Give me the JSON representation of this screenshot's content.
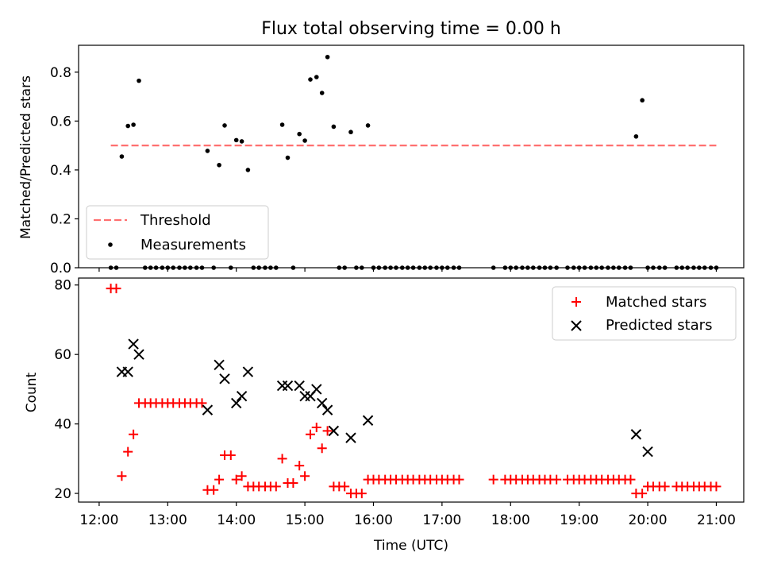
{
  "chart_data": [
    {
      "type": "scatter",
      "title": "Flux total observing time = 0.00 h",
      "xlabel": "",
      "ylabel": "Matched/Predicted stars",
      "xlim": [
        11.7,
        21.4
      ],
      "ylim": [
        0.0,
        0.91
      ],
      "y_ticks": [
        0.0,
        0.2,
        0.4,
        0.6,
        0.8
      ],
      "y_tick_labels": [
        "0.0",
        "0.2",
        "0.4",
        "0.6",
        "0.8"
      ],
      "x_ticks": [
        12,
        13,
        14,
        15,
        16,
        17,
        18,
        19,
        20,
        21
      ],
      "legend": {
        "position": "lower-left",
        "entries": [
          "Threshold",
          "Measurements"
        ]
      },
      "threshold": {
        "name": "Threshold",
        "value": 0.5,
        "x_start": 12.17,
        "x_end": 21.0,
        "color": "#ff7070"
      },
      "series": [
        {
          "name": "Measurements",
          "color": "#000000",
          "x": [
            12.17,
            12.25,
            12.33,
            12.42,
            12.5,
            12.58,
            12.67,
            12.75,
            12.83,
            12.92,
            13.0,
            13.08,
            13.17,
            13.25,
            13.33,
            13.42,
            13.5,
            13.58,
            13.67,
            13.75,
            13.83,
            13.92,
            14.0,
            14.08,
            14.17,
            14.25,
            14.33,
            14.42,
            14.5,
            14.58,
            14.67,
            14.75,
            14.83,
            14.92,
            15.0,
            15.08,
            15.17,
            15.25,
            15.33,
            15.42,
            15.5,
            15.58,
            15.67,
            15.75,
            15.83,
            15.92,
            16.0,
            16.08,
            16.17,
            16.25,
            16.33,
            16.42,
            16.5,
            16.58,
            16.67,
            16.75,
            16.83,
            16.92,
            17.0,
            17.08,
            17.17,
            17.25,
            17.75,
            17.92,
            18.0,
            18.08,
            18.17,
            18.25,
            18.33,
            18.42,
            18.5,
            18.58,
            18.67,
            18.83,
            18.92,
            19.0,
            19.08,
            19.17,
            19.25,
            19.33,
            19.42,
            19.5,
            19.58,
            19.67,
            19.75,
            19.83,
            19.92,
            20.0,
            20.08,
            20.17,
            20.25,
            20.42,
            20.5,
            20.58,
            20.67,
            20.75,
            20.83,
            20.92,
            21.0
          ],
          "y": [
            0,
            0,
            0.455,
            0.58,
            0.585,
            0.765,
            0,
            0,
            0,
            0,
            0,
            0,
            0,
            0,
            0,
            0,
            0,
            0.478,
            0,
            0.42,
            0.582,
            0,
            0.522,
            0.517,
            0.4,
            0,
            0,
            0,
            0,
            0,
            0.585,
            0.45,
            0,
            0.547,
            0.52,
            0.77,
            0.78,
            0.715,
            0.862,
            0.577,
            0,
            0,
            0.555,
            0,
            0,
            0.582,
            0,
            0,
            0,
            0,
            0,
            0,
            0,
            0,
            0,
            0,
            0,
            0,
            0,
            0,
            0,
            0,
            0,
            0,
            0,
            0,
            0,
            0,
            0,
            0,
            0,
            0,
            0,
            0,
            0,
            0,
            0,
            0,
            0,
            0,
            0,
            0,
            0,
            0,
            0,
            0.537,
            0.685,
            0,
            0,
            0,
            0,
            0,
            0,
            0,
            0,
            0,
            0,
            0,
            0
          ]
        }
      ]
    },
    {
      "type": "scatter",
      "title": "",
      "xlabel": "Time (UTC)",
      "ylabel": "Count",
      "xlim": [
        11.7,
        21.4
      ],
      "ylim": [
        17.5,
        82.0
      ],
      "y_ticks": [
        20,
        40,
        60,
        80
      ],
      "y_tick_labels": [
        "20",
        "40",
        "60",
        "80"
      ],
      "x_ticks": [
        12,
        13,
        14,
        15,
        16,
        17,
        18,
        19,
        20,
        21
      ],
      "x_tick_labels": [
        "12:00",
        "13:00",
        "14:00",
        "15:00",
        "16:00",
        "17:00",
        "18:00",
        "19:00",
        "20:00",
        "21:00"
      ],
      "legend": {
        "position": "top-right",
        "entries": [
          "Matched stars",
          "Predicted stars"
        ]
      },
      "series": [
        {
          "name": "Matched stars",
          "marker": "plus",
          "color": "#ff0000",
          "x": [
            12.17,
            12.25,
            12.33,
            12.42,
            12.5,
            12.58,
            12.67,
            12.75,
            12.83,
            12.92,
            13.0,
            13.08,
            13.17,
            13.25,
            13.33,
            13.42,
            13.5,
            13.58,
            13.67,
            13.75,
            13.83,
            13.92,
            14.0,
            14.08,
            14.17,
            14.25,
            14.33,
            14.42,
            14.5,
            14.58,
            14.67,
            14.75,
            14.83,
            14.92,
            15.0,
            15.08,
            15.17,
            15.25,
            15.33,
            15.42,
            15.5,
            15.58,
            15.67,
            15.75,
            15.83,
            15.92,
            16.0,
            16.08,
            16.17,
            16.25,
            16.33,
            16.42,
            16.5,
            16.58,
            16.67,
            16.75,
            16.83,
            16.92,
            17.0,
            17.08,
            17.17,
            17.25,
            17.75,
            17.92,
            18.0,
            18.08,
            18.17,
            18.25,
            18.33,
            18.42,
            18.5,
            18.58,
            18.67,
            18.83,
            18.92,
            19.0,
            19.08,
            19.17,
            19.25,
            19.33,
            19.42,
            19.5,
            19.58,
            19.67,
            19.75,
            19.83,
            19.92,
            20.0,
            20.08,
            20.17,
            20.25,
            20.42,
            20.5,
            20.58,
            20.67,
            20.75,
            20.83,
            20.92,
            21.0
          ],
          "y": [
            79,
            79,
            25,
            32,
            37,
            46,
            46,
            46,
            46,
            46,
            46,
            46,
            46,
            46,
            46,
            46,
            46,
            21,
            21,
            24,
            31,
            31,
            24,
            25,
            22,
            22,
            22,
            22,
            22,
            22,
            30,
            23,
            23,
            28,
            25,
            37,
            39,
            33,
            38,
            22,
            22,
            22,
            20,
            20,
            20,
            24,
            24,
            24,
            24,
            24,
            24,
            24,
            24,
            24,
            24,
            24,
            24,
            24,
            24,
            24,
            24,
            24,
            24,
            24,
            24,
            24,
            24,
            24,
            24,
            24,
            24,
            24,
            24,
            24,
            24,
            24,
            24,
            24,
            24,
            24,
            24,
            24,
            24,
            24,
            24,
            20,
            20,
            22,
            22,
            22,
            22,
            22,
            22,
            22,
            22,
            22,
            22,
            22,
            22
          ]
        },
        {
          "name": "Predicted stars",
          "marker": "x",
          "color": "#000000",
          "x": [
            12.33,
            12.42,
            12.5,
            12.58,
            13.58,
            13.75,
            13.83,
            14.0,
            14.08,
            14.17,
            14.67,
            14.75,
            14.92,
            15.0,
            15.08,
            15.17,
            15.25,
            15.33,
            15.42,
            15.67,
            15.92,
            19.83,
            20.0
          ],
          "y": [
            55,
            55,
            63,
            60,
            44,
            57,
            53,
            46,
            48,
            55,
            51,
            51,
            51,
            48,
            48,
            50,
            46,
            44,
            38,
            36,
            41,
            37,
            32
          ]
        }
      ]
    }
  ]
}
